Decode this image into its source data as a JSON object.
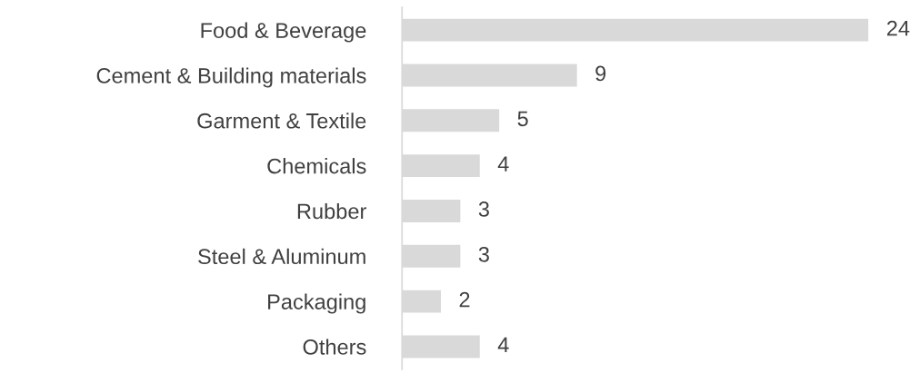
{
  "chart_data": {
    "type": "bar",
    "orientation": "horizontal",
    "categories": [
      "Food & Beverage",
      "Cement & Building materials",
      "Garment & Textile",
      "Chemicals",
      "Rubber",
      "Steel & Aluminum",
      "Packaging",
      "Others"
    ],
    "values": [
      24,
      9,
      5,
      4,
      3,
      3,
      2,
      4
    ],
    "color": "#d9d9d9",
    "data_labels": true,
    "grid": false,
    "legend": false
  }
}
